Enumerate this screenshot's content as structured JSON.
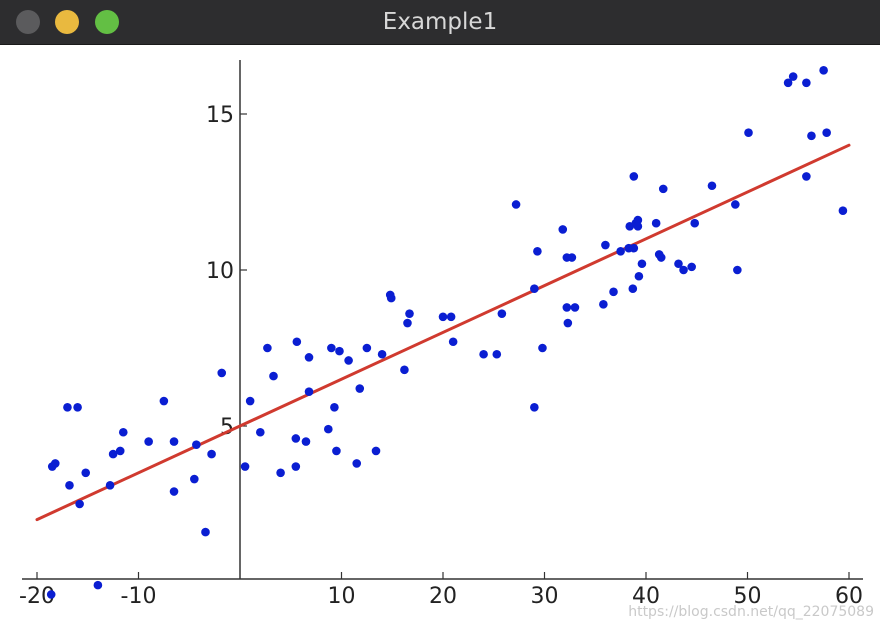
{
  "window": {
    "title": "Example1",
    "buttons": {
      "close_color": "#5b5b5d",
      "minimize_color": "#e9b93f",
      "maximize_color": "#63bf44"
    }
  },
  "watermark": "https://blog.csdn.net/qq_22075089",
  "chart_data": {
    "type": "scatter",
    "xlim": [
      -21,
      61
    ],
    "ylim": [
      -0.5,
      16.8
    ],
    "grid": false,
    "x_ticks": [
      -20,
      -10,
      10,
      20,
      30,
      40,
      50,
      60
    ],
    "x_tick_labels": [
      "-20",
      "-10",
      "10",
      "20",
      "30",
      "40",
      "50",
      "60"
    ],
    "y_ticks": [
      5,
      10,
      15
    ],
    "y_tick_labels": [
      "5",
      "10",
      "15"
    ],
    "colors": {
      "points": "#0a1ed2",
      "line": "#d03a2f",
      "axes": "#333333"
    },
    "regression_line": {
      "x": [
        -20,
        60
      ],
      "y": [
        2.0,
        14.0
      ]
    },
    "points": [
      [
        -18.5,
        3.7
      ],
      [
        -18.2,
        3.8
      ],
      [
        -18.6,
        -0.4
      ],
      [
        -17,
        5.6
      ],
      [
        -16.8,
        3.1
      ],
      [
        -16,
        5.6
      ],
      [
        -15.8,
        2.5
      ],
      [
        -15.2,
        3.5
      ],
      [
        -14,
        -0.1
      ],
      [
        -12.8,
        3.1
      ],
      [
        -12.5,
        4.1
      ],
      [
        -11.8,
        4.2
      ],
      [
        -11.5,
        4.8
      ],
      [
        -9,
        4.5
      ],
      [
        -7.5,
        5.8
      ],
      [
        -6.5,
        4.5
      ],
      [
        -6.5,
        2.9
      ],
      [
        -4.5,
        3.3
      ],
      [
        -4.3,
        4.4
      ],
      [
        -3.4,
        1.6
      ],
      [
        -2.8,
        4.1
      ],
      [
        -1.8,
        6.7
      ],
      [
        0.5,
        3.7
      ],
      [
        1,
        5.8
      ],
      [
        2,
        4.8
      ],
      [
        2.7,
        7.5
      ],
      [
        3.3,
        6.6
      ],
      [
        4,
        3.5
      ],
      [
        5.5,
        3.7
      ],
      [
        5.5,
        4.6
      ],
      [
        5.6,
        7.7
      ],
      [
        6.5,
        4.5
      ],
      [
        6.8,
        6.1
      ],
      [
        6.8,
        7.2
      ],
      [
        8.7,
        4.9
      ],
      [
        9,
        7.5
      ],
      [
        9.3,
        5.6
      ],
      [
        9.5,
        4.2
      ],
      [
        9.8,
        7.4
      ],
      [
        10.7,
        7.1
      ],
      [
        11.5,
        3.8
      ],
      [
        11.8,
        6.2
      ],
      [
        12.5,
        7.5
      ],
      [
        13.4,
        4.2
      ],
      [
        14,
        7.3
      ],
      [
        14.8,
        9.2
      ],
      [
        14.9,
        9.1
      ],
      [
        16.2,
        6.8
      ],
      [
        16.5,
        8.3
      ],
      [
        16.7,
        8.6
      ],
      [
        20,
        8.5
      ],
      [
        20.8,
        8.5
      ],
      [
        21,
        7.7
      ],
      [
        24,
        7.3
      ],
      [
        25.3,
        7.3
      ],
      [
        25.8,
        8.6
      ],
      [
        27.2,
        12.1
      ],
      [
        29,
        9.4
      ],
      [
        29,
        5.6
      ],
      [
        29.3,
        10.6
      ],
      [
        29.8,
        7.5
      ],
      [
        31.8,
        11.3
      ],
      [
        32.2,
        10.4
      ],
      [
        32.2,
        8.8
      ],
      [
        32.3,
        8.3
      ],
      [
        32.7,
        10.4
      ],
      [
        33,
        8.8
      ],
      [
        35.8,
        8.9
      ],
      [
        36,
        10.8
      ],
      [
        36.8,
        9.3
      ],
      [
        37.5,
        10.6
      ],
      [
        38.3,
        10.7
      ],
      [
        38.4,
        11.4
      ],
      [
        38.7,
        9.4
      ],
      [
        38.8,
        10.7
      ],
      [
        38.8,
        13
      ],
      [
        39,
        11.5
      ],
      [
        39.2,
        11.6
      ],
      [
        39.2,
        11.4
      ],
      [
        39.3,
        9.8
      ],
      [
        39.6,
        10.2
      ],
      [
        41,
        11.5
      ],
      [
        41.3,
        10.5
      ],
      [
        41.5,
        10.4
      ],
      [
        41.7,
        12.6
      ],
      [
        43.2,
        10.2
      ],
      [
        43.7,
        10
      ],
      [
        44.5,
        10.1
      ],
      [
        44.8,
        11.5
      ],
      [
        46.5,
        12.7
      ],
      [
        48.8,
        12.1
      ],
      [
        49,
        10
      ],
      [
        50.1,
        14.4
      ],
      [
        54,
        16
      ],
      [
        54.5,
        16.2
      ],
      [
        55.8,
        13
      ],
      [
        55.8,
        16
      ],
      [
        56.3,
        14.3
      ],
      [
        57.5,
        16.4
      ],
      [
        57.8,
        14.4
      ],
      [
        59.4,
        11.9
      ]
    ]
  }
}
